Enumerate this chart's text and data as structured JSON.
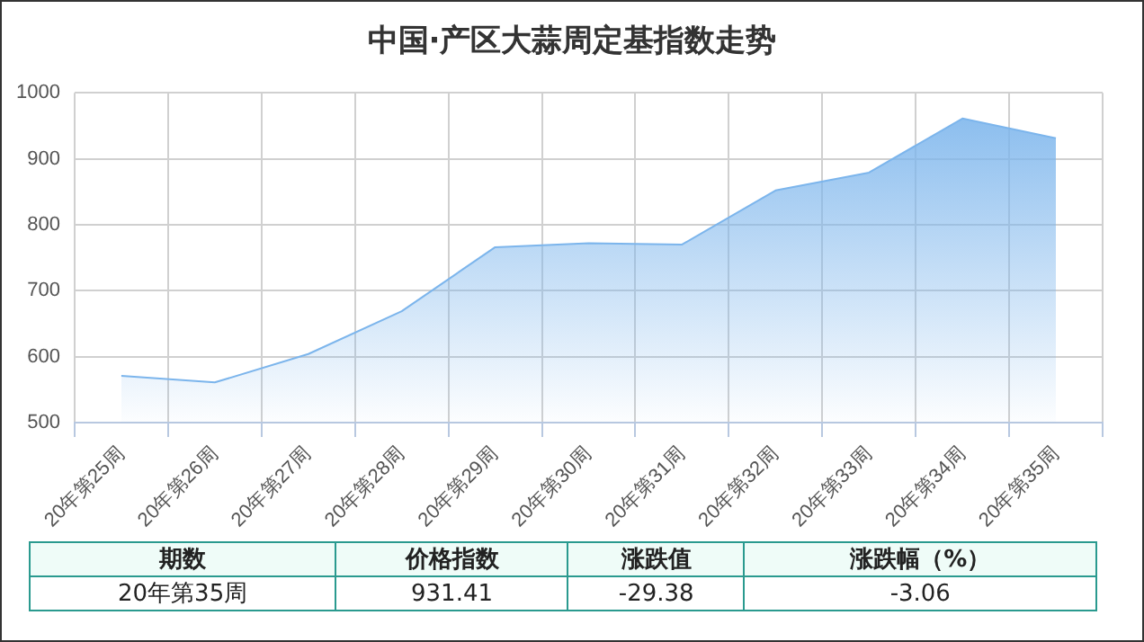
{
  "chart_data": {
    "type": "area",
    "title": "中国·产区大蒜周定基指数走势",
    "categories": [
      "20年第25周",
      "20年第26周",
      "20年第27周",
      "20年第28周",
      "20年第29周",
      "20年第30周",
      "20年第31周",
      "20年第32周",
      "20年第33周",
      "20年第34周",
      "20年第35周"
    ],
    "series": [
      {
        "color": "#7cb5ec",
        "values": [
          571,
          561,
          604,
          669,
          766,
          772,
          770,
          852,
          879,
          961,
          931
        ]
      }
    ],
    "ylim": [
      500,
      1000
    ],
    "yticks": [
      500,
      600,
      700,
      800,
      900,
      1000
    ],
    "grid": true,
    "legend": false,
    "annotations": [
      "期数",
      "价格指数",
      "涨跌值",
      "涨跌幅（%）",
      "20年第35周",
      "931.41",
      "-29.38",
      "-3.06"
    ]
  }
}
